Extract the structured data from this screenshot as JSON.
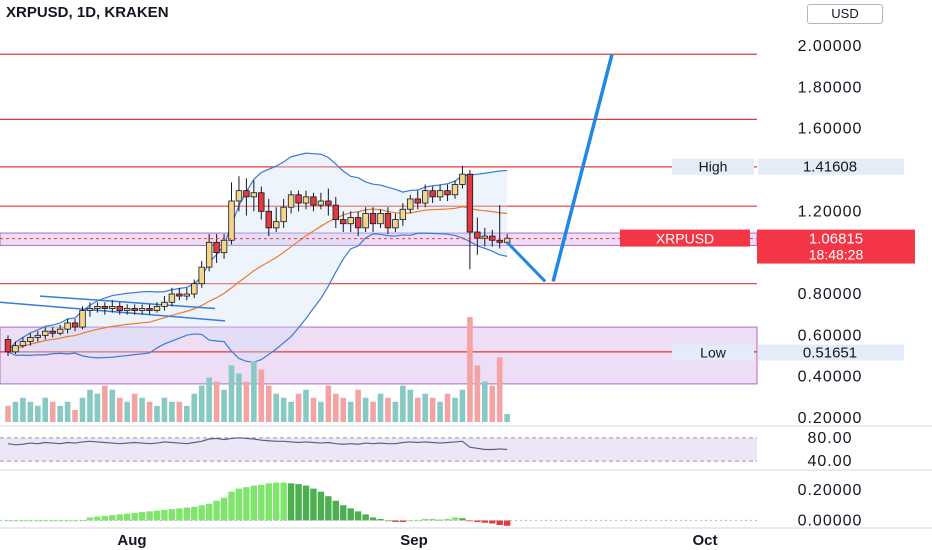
{
  "header": {
    "title": "XRPUSD, 1D, KRAKEN",
    "currency_button": "USD"
  },
  "colors": {
    "bull": "#f5d58a",
    "bear": "#e03a3a",
    "wick": "#131722",
    "level_line": "#e53935",
    "zone_fill": "#d6b4e8",
    "bollinger": "#3a7bd5",
    "ma": "#f07a2c",
    "projection": "#1f88e5",
    "vol_bull": "#89c9c3",
    "vol_bear": "#f3a3a3",
    "rsi": "#5c5f80",
    "macd_bull": "#4caf50",
    "macd_bear": "#e53935",
    "price_tag": "#f23645"
  },
  "chart_data": [
    {
      "type": "candlestick",
      "title": "XRPUSD, 1D, KRAKEN",
      "x_labels": [
        "Aug",
        "Sep",
        "Oct"
      ],
      "y_ticks": [
        "2.00000",
        "1.80000",
        "1.60000",
        "1.20000",
        "0.80000",
        "0.60000",
        "0.40000",
        "0.20000"
      ],
      "ylim": [
        0.2,
        2.0
      ],
      "candles": [
        [
          0.58,
          0.52,
          0.6,
          0.5
        ],
        [
          0.52,
          0.55,
          0.57,
          0.51
        ],
        [
          0.55,
          0.57,
          0.59,
          0.54
        ],
        [
          0.57,
          0.59,
          0.61,
          0.55
        ],
        [
          0.59,
          0.6,
          0.62,
          0.57
        ],
        [
          0.6,
          0.62,
          0.64,
          0.58
        ],
        [
          0.62,
          0.61,
          0.64,
          0.59
        ],
        [
          0.61,
          0.63,
          0.65,
          0.6
        ],
        [
          0.63,
          0.66,
          0.68,
          0.61
        ],
        [
          0.66,
          0.64,
          0.68,
          0.62
        ],
        [
          0.64,
          0.72,
          0.74,
          0.63
        ],
        [
          0.72,
          0.73,
          0.76,
          0.69
        ],
        [
          0.73,
          0.74,
          0.76,
          0.71
        ],
        [
          0.74,
          0.73,
          0.76,
          0.7
        ],
        [
          0.73,
          0.74,
          0.77,
          0.71
        ],
        [
          0.74,
          0.72,
          0.76,
          0.7
        ],
        [
          0.72,
          0.73,
          0.75,
          0.7
        ],
        [
          0.73,
          0.72,
          0.75,
          0.7
        ],
        [
          0.72,
          0.73,
          0.75,
          0.7
        ],
        [
          0.73,
          0.72,
          0.75,
          0.7
        ],
        [
          0.72,
          0.74,
          0.76,
          0.71
        ],
        [
          0.74,
          0.76,
          0.79,
          0.72
        ],
        [
          0.76,
          0.8,
          0.83,
          0.74
        ],
        [
          0.8,
          0.79,
          0.83,
          0.77
        ],
        [
          0.79,
          0.8,
          0.83,
          0.77
        ],
        [
          0.8,
          0.85,
          0.87,
          0.78
        ],
        [
          0.85,
          0.93,
          0.96,
          0.83
        ],
        [
          0.93,
          1.05,
          1.09,
          0.91
        ],
        [
          1.05,
          1.0,
          1.09,
          0.95
        ],
        [
          1.0,
          1.06,
          1.09,
          0.97
        ],
        [
          1.06,
          1.25,
          1.34,
          1.04
        ],
        [
          1.25,
          1.3,
          1.37,
          1.2
        ],
        [
          1.3,
          1.27,
          1.36,
          1.18
        ],
        [
          1.27,
          1.29,
          1.35,
          1.2
        ],
        [
          1.29,
          1.2,
          1.32,
          1.16
        ],
        [
          1.2,
          1.12,
          1.26,
          1.08
        ],
        [
          1.12,
          1.15,
          1.22,
          1.1
        ],
        [
          1.15,
          1.22,
          1.26,
          1.12
        ],
        [
          1.22,
          1.28,
          1.3,
          1.19
        ],
        [
          1.28,
          1.24,
          1.3,
          1.2
        ],
        [
          1.24,
          1.27,
          1.3,
          1.21
        ],
        [
          1.27,
          1.23,
          1.29,
          1.2
        ],
        [
          1.23,
          1.25,
          1.29,
          1.21
        ],
        [
          1.25,
          1.23,
          1.31,
          1.18
        ],
        [
          1.23,
          1.16,
          1.27,
          1.12
        ],
        [
          1.16,
          1.14,
          1.2,
          1.1
        ],
        [
          1.14,
          1.17,
          1.2,
          1.1
        ],
        [
          1.17,
          1.12,
          1.2,
          1.08
        ],
        [
          1.12,
          1.19,
          1.22,
          1.1
        ],
        [
          1.19,
          1.14,
          1.22,
          1.1
        ],
        [
          1.14,
          1.19,
          1.21,
          1.12
        ],
        [
          1.19,
          1.12,
          1.22,
          1.09
        ],
        [
          1.12,
          1.16,
          1.19,
          1.1
        ],
        [
          1.16,
          1.21,
          1.24,
          1.13
        ],
        [
          1.21,
          1.26,
          1.28,
          1.19
        ],
        [
          1.26,
          1.24,
          1.3,
          1.21
        ],
        [
          1.24,
          1.3,
          1.33,
          1.22
        ],
        [
          1.3,
          1.27,
          1.32,
          1.24
        ],
        [
          1.27,
          1.3,
          1.33,
          1.25
        ],
        [
          1.3,
          1.28,
          1.33,
          1.25
        ],
        [
          1.28,
          1.33,
          1.35,
          1.26
        ],
        [
          1.33,
          1.38,
          1.42,
          1.31
        ],
        [
          1.38,
          1.1,
          1.4,
          0.92
        ],
        [
          1.1,
          1.07,
          1.17,
          0.99
        ],
        [
          1.07,
          1.08,
          1.12,
          1.03
        ],
        [
          1.08,
          1.06,
          1.11,
          1.03
        ],
        [
          1.06,
          1.05,
          1.23,
          1.02
        ],
        [
          1.05,
          1.07,
          1.09,
          1.04
        ]
      ],
      "levels": [
        1.96,
        1.645,
        1.415,
        1.225,
        0.85,
        0.52
      ],
      "zones": [
        [
          1.035,
          1.095
        ],
        [
          0.365,
          0.64
        ]
      ],
      "current_price_line": 1.06815,
      "price_tag": {
        "label": "XRPUSD",
        "price": "1.06815",
        "time": "18:48:28"
      },
      "high_marker": {
        "label": "High",
        "value": "1.41608"
      },
      "low_marker": {
        "label": "Low",
        "value": "0.51651"
      },
      "projection": [
        [
          1.02,
          1.05
        ],
        [
          1.03,
          0.88
        ],
        [
          1.04,
          1.93
        ]
      ]
    },
    {
      "type": "bar",
      "series_name": "volume",
      "values": [
        4,
        5,
        6,
        5,
        4,
        6,
        5,
        4,
        5,
        3,
        6,
        8,
        7,
        9,
        8,
        6,
        5,
        7,
        6,
        5,
        4,
        6,
        5,
        5,
        4,
        7,
        9,
        11,
        10,
        8,
        14,
        12,
        10,
        15,
        13,
        9,
        7,
        6,
        5,
        7,
        8,
        6,
        5,
        9,
        7,
        6,
        5,
        8,
        6,
        5,
        7,
        6,
        5,
        9,
        8,
        6,
        7,
        6,
        5,
        7,
        6,
        8,
        26,
        14,
        10,
        9,
        16,
        2
      ]
    },
    {
      "type": "line",
      "series_name": "rsi",
      "y_ticks": [
        "80.00",
        "40.00"
      ],
      "ylim": [
        30,
        90
      ],
      "values": [
        70,
        68,
        69,
        71,
        70,
        72,
        71,
        70,
        72,
        71,
        73,
        74,
        73,
        72,
        71,
        70,
        71,
        72,
        71,
        70,
        71,
        73,
        72,
        71,
        70,
        72,
        74,
        78,
        79,
        77,
        79,
        80,
        79,
        78,
        76,
        75,
        74,
        74,
        73,
        72,
        73,
        72,
        71,
        72,
        70,
        69,
        70,
        69,
        71,
        70,
        71,
        70,
        70,
        72,
        73,
        72,
        73,
        72,
        71,
        72,
        73,
        74,
        64,
        62,
        60,
        60,
        61,
        60
      ]
    },
    {
      "type": "bar",
      "series_name": "macd histogram",
      "y_ticks": [
        "0.20000",
        "0.00000"
      ],
      "ylim": [
        -0.05,
        0.3
      ],
      "values": [
        0,
        0,
        0,
        0,
        0,
        0,
        0,
        0,
        0,
        0,
        0,
        0.02,
        0.025,
        0.03,
        0.035,
        0.04,
        0.045,
        0.05,
        0.055,
        0.06,
        0.065,
        0.07,
        0.075,
        0.08,
        0.085,
        0.09,
        0.1,
        0.11,
        0.13,
        0.15,
        0.19,
        0.21,
        0.22,
        0.23,
        0.235,
        0.245,
        0.25,
        0.25,
        0.245,
        0.24,
        0.23,
        0.21,
        0.19,
        0.16,
        0.13,
        0.1,
        0.08,
        0.06,
        0.04,
        0.02,
        0.01,
        0,
        -0.01,
        -0.01,
        0,
        0,
        0.01,
        0.01,
        0.005,
        0.01,
        0.02,
        0.015,
        -0.005,
        -0.01,
        -0.015,
        -0.02,
        -0.03,
        -0.035
      ]
    }
  ]
}
